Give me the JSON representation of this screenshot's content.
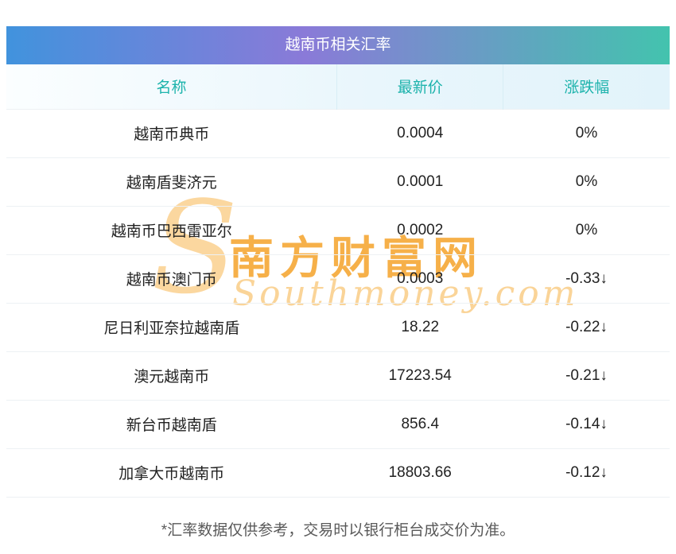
{
  "chart_data": {
    "type": "table",
    "title": "越南币相关汇率",
    "columns": [
      "名称",
      "最新价",
      "涨跌幅"
    ],
    "rows": [
      {
        "name": "越南币典币",
        "price": "0.0004",
        "change": "0%",
        "trend": "flat"
      },
      {
        "name": "越南盾斐济元",
        "price": "0.0001",
        "change": "0%",
        "trend": "flat"
      },
      {
        "name": "越南币巴西雷亚尔",
        "price": "0.0002",
        "change": "0%",
        "trend": "flat"
      },
      {
        "name": "越南币澳门币",
        "price": "0.0003",
        "change": "-0.33↓",
        "trend": "down"
      },
      {
        "name": "尼日利亚奈拉越南盾",
        "price": "18.22",
        "change": "-0.22↓",
        "trend": "down"
      },
      {
        "name": "澳元越南币",
        "price": "17223.54",
        "change": "-0.21↓",
        "trend": "down"
      },
      {
        "name": "新台币越南盾",
        "price": "856.4",
        "change": "-0.14↓",
        "trend": "down"
      },
      {
        "name": "加拿大币越南币",
        "price": "18803.66",
        "change": "-0.12↓",
        "trend": "down"
      }
    ]
  },
  "footer_note": "*汇率数据仅供参考，交易时以银行柜台成交价为准。",
  "watermark": {
    "initial": "S",
    "cn": "南方财富网",
    "en": "Southmoney.com"
  },
  "colors": {
    "title_gradient_left": "#4193dd",
    "title_gradient_mid": "#8a7ad8",
    "title_gradient_right": "#43c3ae",
    "header_text": "#1db3ac",
    "down_green": "#1fa04c",
    "watermark_orange": "#f49d1c",
    "body_text": "#222222",
    "footer_text": "#595959"
  }
}
